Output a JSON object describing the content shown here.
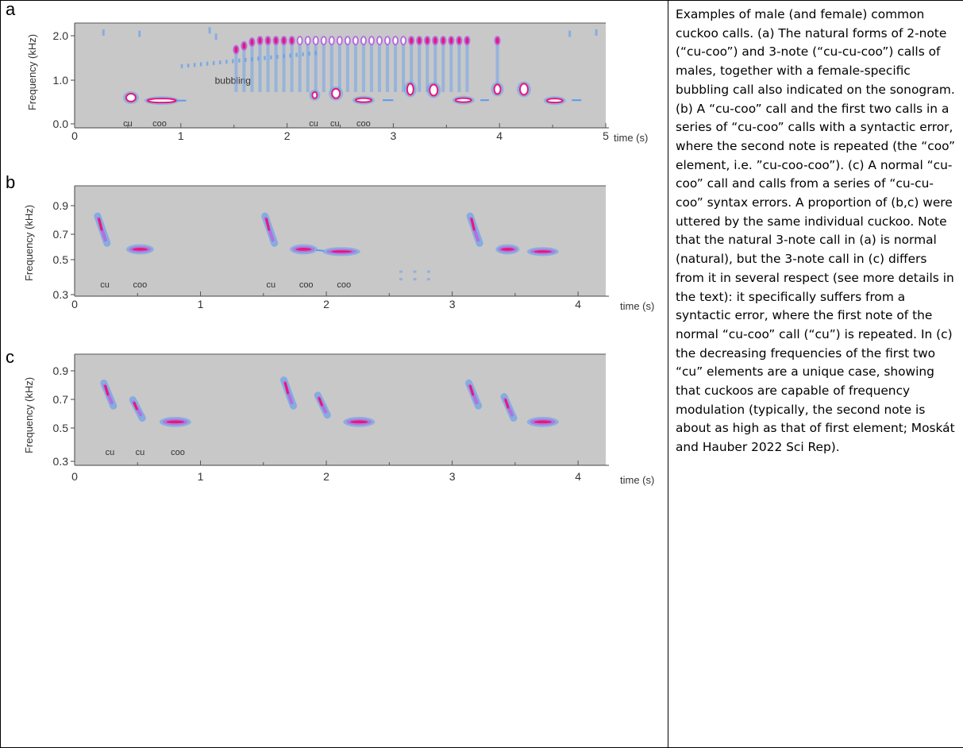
{
  "panels": [
    {
      "letter": "a",
      "ylabel": "Frequency (kHz)",
      "xlabel": "time (s)",
      "y_ticks": [
        "2.0",
        "1.0",
        "0.0"
      ],
      "x_ticks": [
        "0",
        "1",
        "2",
        "3",
        "4",
        "5"
      ],
      "ylim": [
        -0.1,
        2.4
      ],
      "xlim": [
        0,
        5
      ],
      "note_labels": [
        {
          "text": "cu",
          "time": 0.5
        },
        {
          "text": "coo",
          "time": 0.8
        },
        {
          "text": "cu",
          "time": 2.25
        },
        {
          "text": "cu",
          "time": 2.45
        },
        {
          "text": "coo",
          "time": 2.72
        }
      ],
      "annotations": [
        {
          "text": "bubbling",
          "time": 1.32,
          "freq": 0.95
        }
      ]
    },
    {
      "letter": "b",
      "ylabel": "Frequency (kHz)",
      "xlabel": "time (s)",
      "y_ticks": [
        "0.9",
        "0.7",
        "0.5",
        "0.3"
      ],
      "x_ticks": [
        "0",
        "1",
        "2",
        "3",
        "4"
      ],
      "ylim": [
        0.27,
        1.0
      ],
      "xlim": [
        0,
        4.22
      ],
      "note_labels": [
        {
          "text": "cu",
          "time": 0.24
        },
        {
          "text": "coo",
          "time": 0.52
        },
        {
          "text": "cu",
          "time": 1.56
        },
        {
          "text": "coo",
          "time": 1.84
        },
        {
          "text": "coo",
          "time": 2.14
        }
      ],
      "annotations": []
    },
    {
      "letter": "c",
      "ylabel": "Frequency (kHz)",
      "xlabel": "time (s)",
      "y_ticks": [
        "0.9",
        "0.7",
        "0.5",
        "0.3"
      ],
      "x_ticks": [
        "0",
        "1",
        "2",
        "3",
        "4"
      ],
      "ylim": [
        0.27,
        1.0
      ],
      "xlim": [
        0,
        4.22
      ],
      "note_labels": [
        {
          "text": "cu",
          "time": 0.28
        },
        {
          "text": "cu",
          "time": 0.52
        },
        {
          "text": "coo",
          "time": 0.82
        }
      ],
      "annotations": []
    }
  ],
  "caption": "Examples of male (and female) common cuckoo calls. (a) The natural forms of 2-note (“cu-coo”) and 3-note (“cu-cu-coo”) calls of males, together with a female-specific bubbling call also indicated on the sonogram. (b) A “cu-coo” call and the first two calls in a series of “cu-coo” calls with a syntactic error, where the second note is repeated (the “coo” element, i.e. ”cu-coo-coo”). (c) A normal “cu-coo” call and calls from a series of “cu-cu-coo” syntax errors. A proportion of (b,c) were uttered by the same individual cuckoo. Note that the natural 3-note call in (a) is normal (natural), but the 3-note call in (c) differs from it in several respect (see more details in the text): it specifically suffers from a syntactic error, where the first note of the normal “cu-coo” call (“cu”) is repeated. In (c) the decreasing frequencies of the first two “cu” elements are a unique case, showing that cuckoos are capable of frequency modulation (typically, the second note is about as high as that of first element; Moskát and Hauber 2022 Sci Rep).",
  "colors": {
    "plot_background": "#c8c8c8",
    "blue_energy": "#5b9bf0",
    "mid_energy": "#b46ee0",
    "peak_energy": "#e8177a",
    "white_core": "#ffffff"
  }
}
